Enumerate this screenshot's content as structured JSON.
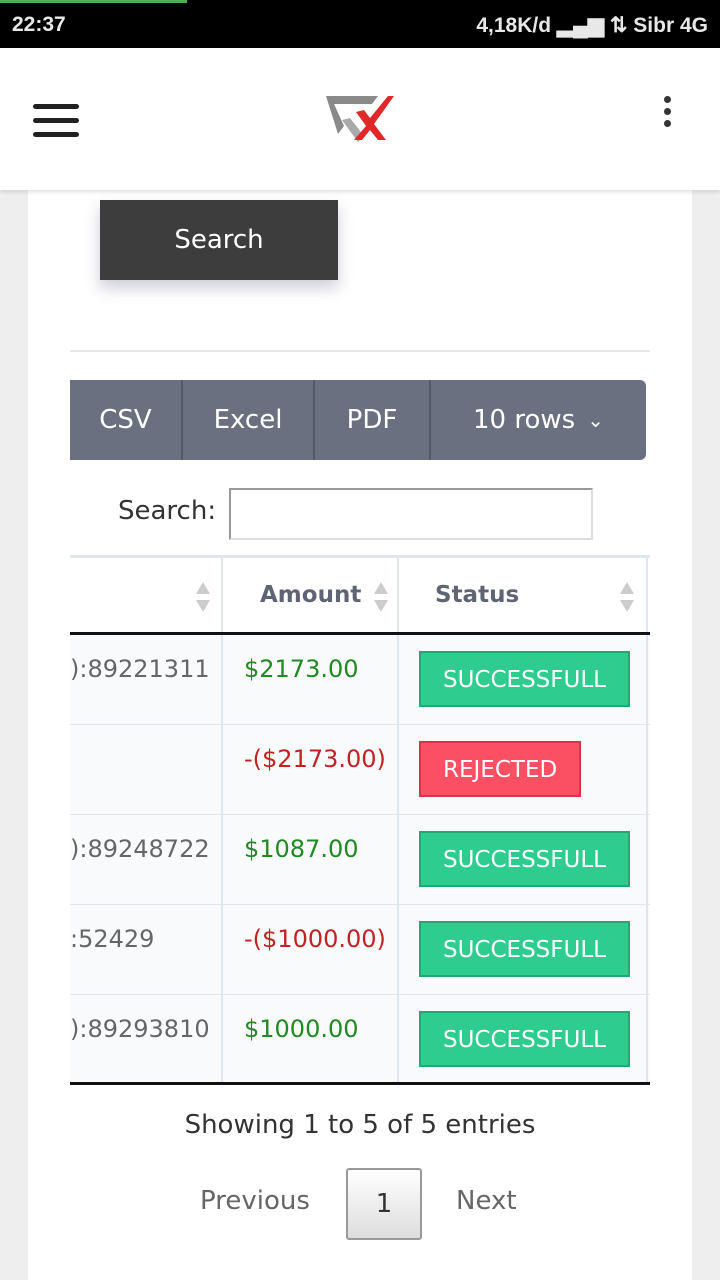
{
  "status_bar": {
    "time": "22:37",
    "right": "4,18K/d ▂▄▆ ⇅ Sibr  4G",
    "progress_percent": 26
  },
  "app_bar": {
    "menu_icon": "hamburger-icon",
    "logo": "GTX logo",
    "more_icon": "more-vertical-icon"
  },
  "search_button": "Search",
  "export": {
    "csv": "CSV",
    "excel": "Excel",
    "pdf": "PDF",
    "rows": "10 rows"
  },
  "table_search": {
    "label": "Search:",
    "value": ""
  },
  "table": {
    "headers": [
      "",
      "Amount",
      "Status"
    ],
    "rows": [
      {
        "ref": "):89221311",
        "amount": "$2173.00",
        "type": "pos",
        "status": "SUCCESSFULL",
        "status_type": "ok"
      },
      {
        "ref": "",
        "amount": "-($2173.00)",
        "type": "neg",
        "status": "REJECTED",
        "status_type": "rej"
      },
      {
        "ref": "):89248722",
        "amount": "$1087.00",
        "type": "pos",
        "status": "SUCCESSFULL",
        "status_type": "ok"
      },
      {
        "ref": ":52429",
        "amount": "-($1000.00)",
        "type": "neg",
        "status": "SUCCESSFULL",
        "status_type": "ok"
      },
      {
        "ref": "):89293810",
        "amount": "$1000.00",
        "type": "pos",
        "status": "SUCCESSFULL",
        "status_type": "ok"
      }
    ]
  },
  "pagination": {
    "info": "Showing 1 to 5 of 5 entries",
    "previous": "Previous",
    "page": "1",
    "next": "Next"
  },
  "colors": {
    "success": "#2ecc8e",
    "rejected": "#fb4f63",
    "positive": "#1f8a1f",
    "negative": "#c22222",
    "button_group": "#6b7080"
  }
}
